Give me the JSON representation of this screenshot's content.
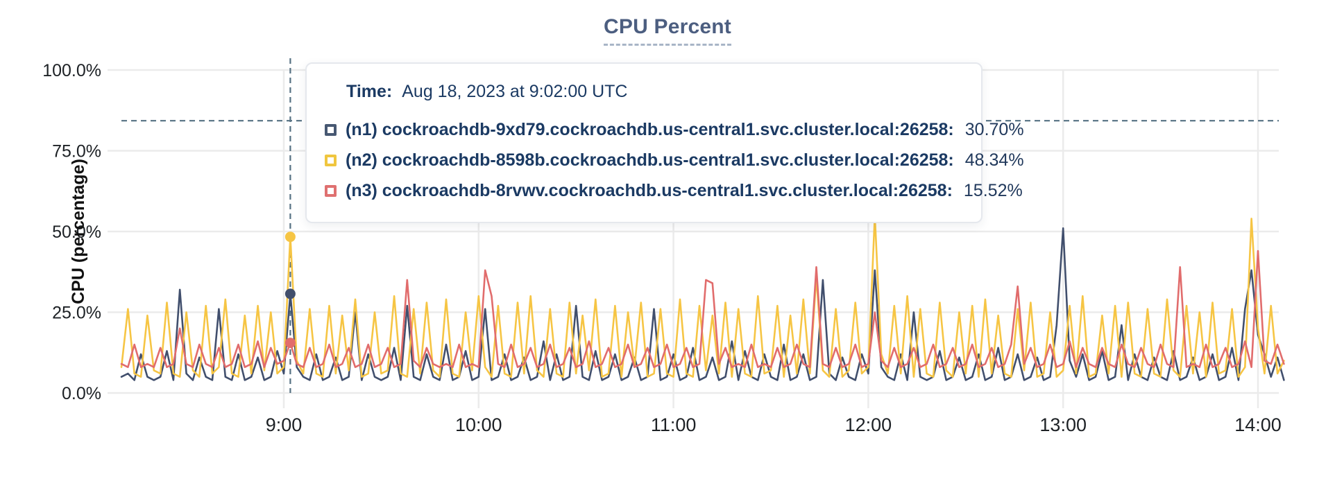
{
  "title": "CPU Percent",
  "tooltip": {
    "time_label": "Time:",
    "time_value": "Aug 18, 2023 at 9:02:00 UTC",
    "rows": [
      {
        "id": "n1",
        "label": "(n1) cockroachdb-9xd79.cockroachdb.us-central1.svc.cluster.local:26258:",
        "value": "30.70%",
        "color": "#475872"
      },
      {
        "id": "n2",
        "label": "(n2) cockroachdb-8598b.cockroachdb.us-central1.svc.cluster.local:26258:",
        "value": "48.34%",
        "color": "#f0c63f"
      },
      {
        "id": "n3",
        "label": "(n3) cockroachdb-8rvwv.cockroachdb.us-central1.svc.cluster.local:26258:",
        "value": "15.52%",
        "color": "#df7070"
      }
    ]
  },
  "chart_data": {
    "type": "line",
    "title": "CPU Percent",
    "ylabel": "CPU (percentage)",
    "ylim": [
      0,
      100
    ],
    "grid": true,
    "y_ticks": [
      "100.0%",
      "75.0%",
      "50.0%",
      "25.0%",
      "0.0%"
    ],
    "y_tick_values": [
      100,
      75,
      50,
      25,
      0
    ],
    "x_ticks": [
      "9:00",
      "10:00",
      "11:00",
      "12:00",
      "13:00",
      "14:00"
    ],
    "x_tick_minutes": [
      50,
      110,
      170,
      230,
      290,
      350
    ],
    "x_start_time": "8:10",
    "x_end_time": "14:08",
    "step_min": 2,
    "threshold_percent": 84.3,
    "hover": {
      "minute": 52,
      "time": "9:02:00 UTC",
      "dots": [
        {
          "series": "n2",
          "value": 48.34
        },
        {
          "series": "n1",
          "value": 30.7
        },
        {
          "series": "n3",
          "value": 15.52
        }
      ]
    },
    "series": [
      {
        "id": "n1",
        "name": "(n1) cockroachdb-9xd79.cockroachdb.us-central1.svc.cluster.local:26258",
        "color": "#414f6d",
        "values": [
          5,
          6,
          4,
          12,
          5,
          4,
          5,
          13,
          4,
          32,
          6,
          4,
          11,
          5,
          4,
          26,
          5,
          4,
          12,
          4,
          5,
          11,
          4,
          5,
          13,
          6,
          30.7,
          8,
          5,
          4,
          12,
          4,
          5,
          11,
          4,
          5,
          25,
          4,
          12,
          5,
          4,
          5,
          14,
          4,
          27,
          5,
          4,
          12,
          5,
          4,
          15,
          4,
          5,
          13,
          4,
          5,
          26,
          4,
          5,
          12,
          4,
          5,
          11,
          4,
          5,
          16,
          4,
          12,
          4,
          5,
          27,
          5,
          4,
          13,
          4,
          5,
          12,
          4,
          5,
          11,
          4,
          5,
          26,
          4,
          5,
          12,
          4,
          5,
          14,
          4,
          5,
          11,
          4,
          5,
          16,
          4,
          13,
          5,
          4,
          12,
          5,
          4,
          15,
          4,
          5,
          12,
          4,
          5,
          35,
          6,
          4,
          11,
          5,
          4,
          12,
          6,
          38,
          8,
          5,
          4,
          12,
          4,
          25,
          5,
          4,
          5,
          13,
          4,
          5,
          11,
          4,
          5,
          12,
          4,
          5,
          14,
          4,
          5,
          12,
          4,
          5,
          11,
          4,
          5,
          21,
          51,
          10,
          5,
          12,
          4,
          5,
          13,
          4,
          5,
          21,
          4,
          12,
          5,
          4,
          11,
          5,
          4,
          13,
          4,
          5,
          11,
          4,
          5,
          12,
          4,
          5,
          14,
          4,
          26,
          38,
          18,
          12,
          5,
          11,
          4
        ]
      },
      {
        "id": "n2",
        "name": "(n2) cockroachdb-8598b.cockroachdb.us-central1.svc.cluster.local:26258",
        "color": "#f6c544",
        "values": [
          8,
          26,
          6,
          5,
          24,
          7,
          6,
          28,
          6,
          5,
          25,
          7,
          5,
          27,
          6,
          8,
          29,
          6,
          5,
          24,
          6,
          27,
          7,
          25,
          6,
          8,
          48.34,
          10,
          6,
          26,
          6,
          5,
          27,
          6,
          24,
          7,
          29,
          5,
          6,
          25,
          6,
          7,
          30,
          6,
          5,
          26,
          6,
          28,
          7,
          5,
          29,
          6,
          5,
          25,
          7,
          30,
          8,
          5,
          27,
          6,
          5,
          28,
          6,
          30,
          7,
          5,
          26,
          6,
          5,
          28,
          6,
          24,
          7,
          29,
          5,
          6,
          27,
          5,
          25,
          8,
          28,
          5,
          6,
          26,
          6,
          5,
          29,
          6,
          5,
          27,
          7,
          24,
          6,
          28,
          5,
          26,
          6,
          5,
          30,
          6,
          7,
          27,
          5,
          24,
          6,
          29,
          6,
          36,
          7,
          5,
          26,
          5,
          7,
          28,
          6,
          8,
          55,
          12,
          6,
          27,
          6,
          30,
          5,
          26,
          6,
          5,
          28,
          7,
          5,
          25,
          6,
          27,
          5,
          29,
          6,
          24,
          6,
          5,
          26,
          7,
          28,
          5,
          6,
          25,
          5,
          7,
          27,
          6,
          30,
          5,
          6,
          24,
          6,
          27,
          5,
          28,
          6,
          5,
          26,
          6,
          5,
          29,
          7,
          5,
          27,
          6,
          25,
          5,
          28,
          6,
          7,
          26,
          5,
          8,
          54,
          20,
          6,
          27,
          6,
          10
        ]
      },
      {
        "id": "n3",
        "name": "(n3) cockroachdb-8rvwv.cockroachdb.us-central1.svc.cluster.local:26258",
        "color": "#e16c6c",
        "values": [
          9,
          8,
          15,
          8,
          9,
          8,
          14,
          8,
          9,
          20,
          9,
          8,
          15,
          9,
          8,
          14,
          8,
          9,
          15,
          8,
          9,
          16,
          8,
          14,
          9,
          10,
          15.52,
          9,
          8,
          14,
          8,
          9,
          15,
          8,
          9,
          14,
          8,
          9,
          15,
          8,
          9,
          14,
          8,
          9,
          35,
          10,
          8,
          14,
          9,
          8,
          9,
          8,
          15,
          8,
          9,
          8,
          38,
          30,
          9,
          8,
          15,
          8,
          9,
          14,
          8,
          9,
          15,
          8,
          9,
          14,
          8,
          9,
          16,
          8,
          9,
          14,
          8,
          9,
          15,
          8,
          9,
          14,
          8,
          9,
          15,
          8,
          9,
          14,
          8,
          9,
          35,
          34,
          9,
          14,
          8,
          9,
          8,
          15,
          8,
          9,
          8,
          14,
          8,
          9,
          15,
          9,
          8,
          39,
          9,
          8,
          14,
          8,
          9,
          15,
          8,
          9,
          25,
          10,
          8,
          14,
          8,
          9,
          14,
          8,
          9,
          15,
          8,
          9,
          14,
          8,
          9,
          15,
          8,
          9,
          14,
          8,
          9,
          15,
          33,
          9,
          14,
          8,
          9,
          15,
          8,
          9,
          16,
          8,
          14,
          9,
          8,
          14,
          9,
          8,
          15,
          9,
          8,
          14,
          9,
          8,
          15,
          9,
          8,
          39,
          8,
          9,
          8,
          15,
          8,
          9,
          14,
          8,
          9,
          16,
          8,
          44,
          10,
          9,
          15,
          9
        ]
      }
    ]
  }
}
